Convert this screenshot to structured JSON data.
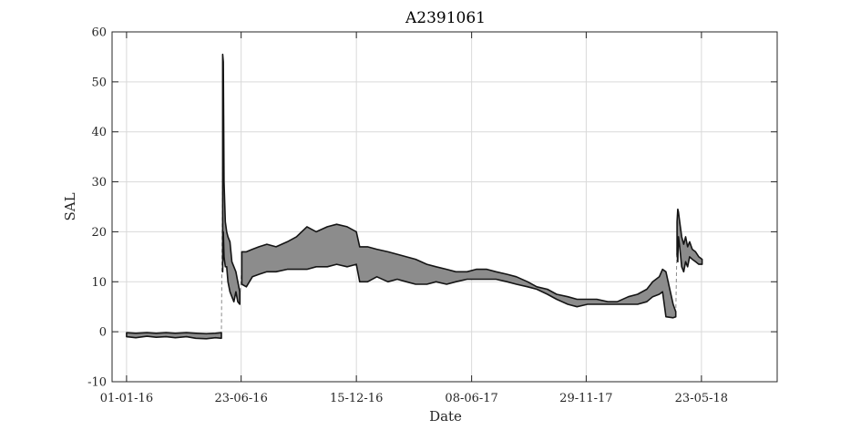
{
  "chart_data": {
    "type": "line",
    "title": "A2391061",
    "xlabel": "Date",
    "ylabel": "SAL",
    "ylim": [
      -10,
      60
    ],
    "xlim": [
      "2015-12-10",
      "2018-09-15"
    ],
    "grid": true,
    "yticks": [
      -10,
      0,
      10,
      20,
      30,
      40,
      50,
      60
    ],
    "xticks": [
      {
        "date": "2016-01-01",
        "label": "01-01-16"
      },
      {
        "date": "2016-06-23",
        "label": "23-06-16"
      },
      {
        "date": "2016-12-15",
        "label": "15-12-16"
      },
      {
        "date": "2017-06-08",
        "label": "08-06-17"
      },
      {
        "date": "2017-11-29",
        "label": "29-11-17"
      },
      {
        "date": "2018-05-23",
        "label": "23-05-18"
      }
    ],
    "series": [
      {
        "name": "",
        "segments": [
          {
            "x": [
              "2016-01-01",
              "2016-01-15",
              "2016-02-01",
              "2016-02-15",
              "2016-03-01",
              "2016-03-15",
              "2016-04-01",
              "2016-04-15",
              "2016-05-01",
              "2016-05-15",
              "2016-05-24"
            ],
            "min": [
              -1.0,
              -1.2,
              -0.9,
              -1.1,
              -1.0,
              -1.2,
              -1.0,
              -1.3,
              -1.4,
              -1.2,
              -1.3
            ],
            "max": [
              -0.2,
              -0.3,
              -0.2,
              -0.3,
              -0.2,
              -0.3,
              -0.2,
              -0.3,
              -0.4,
              -0.3,
              -0.2
            ]
          },
          {
            "x": [
              "2016-05-26",
              "2016-05-27",
              "2016-05-28",
              "2016-05-30",
              "2016-06-01",
              "2016-06-03",
              "2016-06-06",
              "2016-06-09",
              "2016-06-12",
              "2016-06-15",
              "2016-06-18",
              "2016-06-21"
            ],
            "min": [
              12.0,
              20.0,
              15.0,
              13.0,
              13.0,
              10.0,
              8.0,
              7.0,
              6.0,
              8.0,
              6.0,
              5.5
            ],
            "max": [
              55.5,
              54.0,
              30.0,
              22.0,
              20.0,
              19.0,
              18.0,
              14.0,
              13.0,
              12.0,
              10.0,
              8.0
            ]
          },
          {
            "x": [
              "2016-06-24",
              "2016-07-01",
              "2016-07-10",
              "2016-07-20",
              "2016-08-01",
              "2016-08-15",
              "2016-09-01",
              "2016-09-15",
              "2016-10-01",
              "2016-10-15",
              "2016-11-01",
              "2016-11-15",
              "2016-12-01",
              "2016-12-15",
              "2016-12-20",
              "2017-01-01",
              "2017-01-15",
              "2017-02-01",
              "2017-02-15",
              "2017-03-01",
              "2017-03-15",
              "2017-04-01",
              "2017-04-15",
              "2017-05-01",
              "2017-05-15",
              "2017-06-01",
              "2017-06-15",
              "2017-07-01",
              "2017-07-15",
              "2017-08-01",
              "2017-08-15",
              "2017-09-01",
              "2017-09-15",
              "2017-10-01",
              "2017-10-15",
              "2017-11-01",
              "2017-11-15",
              "2017-12-01",
              "2017-12-15",
              "2018-01-01",
              "2018-01-15",
              "2018-02-01",
              "2018-02-15",
              "2018-03-01",
              "2018-03-10",
              "2018-03-20",
              "2018-03-25",
              "2018-03-30",
              "2018-04-10",
              "2018-04-14"
            ],
            "min": [
              9.5,
              9.0,
              11.0,
              11.5,
              12.0,
              12.0,
              12.5,
              12.5,
              12.5,
              13.0,
              13.0,
              13.5,
              13.0,
              13.5,
              10.0,
              10.0,
              11.0,
              10.0,
              10.5,
              10.0,
              9.5,
              9.5,
              10.0,
              9.5,
              10.0,
              10.5,
              10.5,
              10.5,
              10.5,
              10.0,
              9.5,
              9.0,
              8.5,
              7.5,
              6.5,
              5.5,
              5.0,
              5.5,
              5.5,
              5.5,
              5.5,
              5.5,
              5.5,
              6.0,
              7.0,
              7.5,
              8.0,
              3.0,
              2.8,
              3.0
            ],
            "max": [
              16.0,
              16.0,
              16.5,
              17.0,
              17.5,
              17.0,
              18.0,
              19.0,
              21.0,
              20.0,
              21.0,
              21.5,
              21.0,
              20.0,
              17.0,
              17.0,
              16.5,
              16.0,
              15.5,
              15.0,
              14.5,
              13.5,
              13.0,
              12.5,
              12.0,
              12.0,
              12.5,
              12.5,
              12.0,
              11.5,
              11.0,
              10.0,
              9.0,
              8.5,
              7.5,
              7.0,
              6.5,
              6.5,
              6.5,
              6.0,
              6.0,
              7.0,
              7.5,
              8.5,
              10.0,
              11.0,
              12.5,
              12.0,
              5.5,
              4.0
            ]
          },
          {
            "x": [
              "2018-04-16",
              "2018-04-17",
              "2018-04-18",
              "2018-04-20",
              "2018-04-23",
              "2018-04-26",
              "2018-04-29",
              "2018-05-02",
              "2018-05-05",
              "2018-05-09",
              "2018-05-14",
              "2018-05-19",
              "2018-05-24"
            ],
            "min": [
              15.5,
              14.0,
              19.0,
              17.0,
              13.0,
              12.0,
              14.0,
              13.0,
              15.0,
              14.5,
              14.0,
              13.5,
              13.5
            ],
            "max": [
              22.0,
              24.5,
              24.0,
              22.0,
              19.0,
              17.5,
              19.0,
              17.0,
              18.0,
              16.5,
              16.0,
              15.0,
              14.5
            ]
          }
        ]
      }
    ]
  }
}
